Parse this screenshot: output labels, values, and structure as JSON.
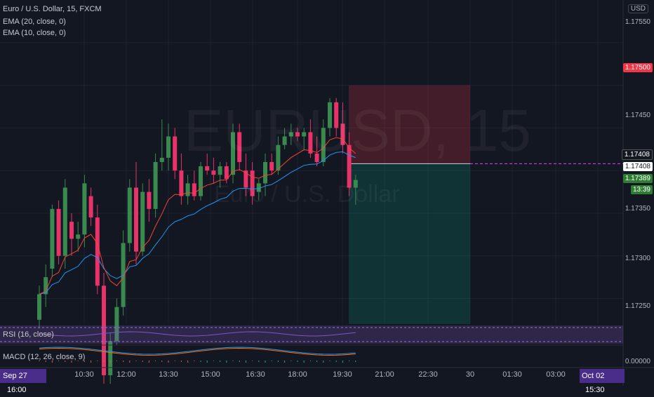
{
  "header": {
    "symbol": "Euro / U.S. Dollar, 15, FXCM",
    "ema1": "EMA (20, close, 0)",
    "ema2": "EMA (10, close, 0)"
  },
  "currency_button": "USD",
  "watermark": {
    "ticker": "EURUSD, 15",
    "name": "Euro / U.S. Dollar"
  },
  "price_axis": {
    "ticks": [
      "1.17550",
      "1.17450",
      "1.17400",
      "1.17350",
      "1.17300",
      "1.17250"
    ],
    "labels": {
      "target": "1.17500",
      "entry": "1.17408",
      "crosshair": "1.17408",
      "last": "1.17389",
      "countdown": "13:39"
    }
  },
  "time_axis": {
    "start_label": "Sep 27",
    "start_time": "16:00",
    "ticks": [
      {
        "t": "10:30"
      },
      {
        "t": "12:00"
      },
      {
        "t": "13:30"
      },
      {
        "t": "15:00"
      },
      {
        "t": "16:30"
      },
      {
        "t": "18:00"
      },
      {
        "t": "19:30"
      },
      {
        "t": "21:00"
      },
      {
        "t": "22:30"
      },
      {
        "t": "30"
      },
      {
        "t": "01:30"
      },
      {
        "t": "03:00"
      }
    ],
    "end_label": "Oct 02",
    "end_time": "15:30"
  },
  "rsi": {
    "label": "RSI (16, close)"
  },
  "macd": {
    "label": "MACD (12, 26, close, 9)",
    "value": "0.00000"
  },
  "colors": {
    "background": "#131722",
    "up": "#26a69a",
    "down": "#ef5350",
    "candle_up": "#3a8a4f",
    "candle_down": "#e8336a",
    "ema20": "#2196f3",
    "ema10": "#f44336",
    "rsi_band": "#7e57c2",
    "target_label": "#f23645"
  },
  "chart_data": {
    "type": "candlestick",
    "title": "Euro / U.S. Dollar, 15, FXCM",
    "ylim": [
      1.1722,
      1.176
    ],
    "candles": [
      {
        "o": 1.17225,
        "h": 1.17265,
        "l": 1.17215,
        "c": 1.17255
      },
      {
        "o": 1.17255,
        "h": 1.1729,
        "l": 1.1724,
        "c": 1.17275
      },
      {
        "o": 1.17285,
        "h": 1.1736,
        "l": 1.17275,
        "c": 1.17355
      },
      {
        "o": 1.17355,
        "h": 1.17365,
        "l": 1.1729,
        "c": 1.173
      },
      {
        "o": 1.173,
        "h": 1.1739,
        "l": 1.17285,
        "c": 1.1738
      },
      {
        "o": 1.1734,
        "h": 1.1735,
        "l": 1.173,
        "c": 1.1732
      },
      {
        "o": 1.1732,
        "h": 1.1734,
        "l": 1.17305,
        "c": 1.17325
      },
      {
        "o": 1.17325,
        "h": 1.17395,
        "l": 1.1731,
        "c": 1.17385
      },
      {
        "o": 1.1737,
        "h": 1.1738,
        "l": 1.17335,
        "c": 1.17345
      },
      {
        "o": 1.17345,
        "h": 1.1736,
        "l": 1.17255,
        "c": 1.17265
      },
      {
        "o": 1.17265,
        "h": 1.1728,
        "l": 1.1715,
        "c": 1.1716
      },
      {
        "o": 1.1716,
        "h": 1.1721,
        "l": 1.1715,
        "c": 1.172
      },
      {
        "o": 1.172,
        "h": 1.1725,
        "l": 1.17195,
        "c": 1.1724
      },
      {
        "o": 1.1724,
        "h": 1.1733,
        "l": 1.1723,
        "c": 1.17315
      },
      {
        "o": 1.17315,
        "h": 1.1739,
        "l": 1.17305,
        "c": 1.1738
      },
      {
        "o": 1.1738,
        "h": 1.1741,
        "l": 1.1729,
        "c": 1.17305
      },
      {
        "o": 1.17305,
        "h": 1.17385,
        "l": 1.173,
        "c": 1.17375
      },
      {
        "o": 1.17375,
        "h": 1.1739,
        "l": 1.1734,
        "c": 1.17355
      },
      {
        "o": 1.17355,
        "h": 1.1742,
        "l": 1.17345,
        "c": 1.1741
      },
      {
        "o": 1.1741,
        "h": 1.1746,
        "l": 1.174,
        "c": 1.17415
      },
      {
        "o": 1.17415,
        "h": 1.17455,
        "l": 1.174,
        "c": 1.1744
      },
      {
        "o": 1.1744,
        "h": 1.1745,
        "l": 1.1739,
        "c": 1.174
      },
      {
        "o": 1.174,
        "h": 1.1742,
        "l": 1.1736,
        "c": 1.1737
      },
      {
        "o": 1.1737,
        "h": 1.17395,
        "l": 1.1736,
        "c": 1.17385
      },
      {
        "o": 1.17385,
        "h": 1.174,
        "l": 1.17365,
        "c": 1.1737
      },
      {
        "o": 1.1737,
        "h": 1.1741,
        "l": 1.17365,
        "c": 1.17405
      },
      {
        "o": 1.17405,
        "h": 1.1742,
        "l": 1.17395,
        "c": 1.174
      },
      {
        "o": 1.174,
        "h": 1.17415,
        "l": 1.17385,
        "c": 1.17395
      },
      {
        "o": 1.17395,
        "h": 1.1741,
        "l": 1.1738,
        "c": 1.17405
      },
      {
        "o": 1.17405,
        "h": 1.1741,
        "l": 1.17385,
        "c": 1.1739
      },
      {
        "o": 1.17395,
        "h": 1.17455,
        "l": 1.17385,
        "c": 1.17445
      },
      {
        "o": 1.17445,
        "h": 1.17455,
        "l": 1.174,
        "c": 1.1741
      },
      {
        "o": 1.174,
        "h": 1.1742,
        "l": 1.1737,
        "c": 1.1738
      },
      {
        "o": 1.174,
        "h": 1.1741,
        "l": 1.1736,
        "c": 1.1737
      },
      {
        "o": 1.17375,
        "h": 1.1739,
        "l": 1.17365,
        "c": 1.17385
      },
      {
        "o": 1.17385,
        "h": 1.1742,
        "l": 1.1737,
        "c": 1.1741
      },
      {
        "o": 1.1741,
        "h": 1.1742,
        "l": 1.17395,
        "c": 1.174
      },
      {
        "o": 1.174,
        "h": 1.1744,
        "l": 1.17395,
        "c": 1.1743
      },
      {
        "o": 1.1743,
        "h": 1.1745,
        "l": 1.17425,
        "c": 1.1744
      },
      {
        "o": 1.1744,
        "h": 1.17455,
        "l": 1.1743,
        "c": 1.17445
      },
      {
        "o": 1.17445,
        "h": 1.1745,
        "l": 1.17435,
        "c": 1.1744
      },
      {
        "o": 1.1744,
        "h": 1.1745,
        "l": 1.17425,
        "c": 1.17445
      },
      {
        "o": 1.17445,
        "h": 1.1746,
        "l": 1.17415,
        "c": 1.1742
      },
      {
        "o": 1.1742,
        "h": 1.1744,
        "l": 1.17405,
        "c": 1.1741
      },
      {
        "o": 1.1741,
        "h": 1.1746,
        "l": 1.17405,
        "c": 1.1745
      },
      {
        "o": 1.1745,
        "h": 1.17485,
        "l": 1.1744,
        "c": 1.1748
      },
      {
        "o": 1.1748,
        "h": 1.17485,
        "l": 1.1744,
        "c": 1.1745
      },
      {
        "o": 1.17455,
        "h": 1.1748,
        "l": 1.1742,
        "c": 1.1743
      },
      {
        "o": 1.1743,
        "h": 1.17445,
        "l": 1.1737,
        "c": 1.1738
      },
      {
        "o": 1.1738,
        "h": 1.17395,
        "l": 1.1736,
        "c": 1.17389
      }
    ],
    "position": {
      "type": "short",
      "entry": 1.17408,
      "stop": 1.175,
      "target": 1.1722
    }
  }
}
